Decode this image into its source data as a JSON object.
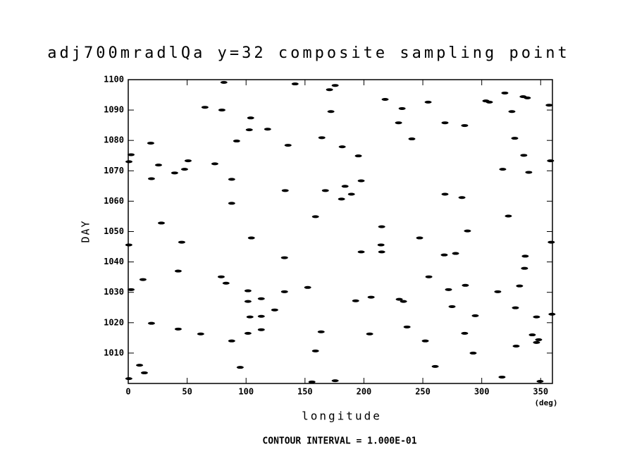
{
  "chart_data": {
    "type": "scatter",
    "title": "adj700mradlQa y=32 composite sampling point",
    "x_label": "longitude",
    "x_unit": "(deg)",
    "y_label": "DAY",
    "footer": "CONTOUR INTERVAL = 1.000E-01",
    "color": "#000000",
    "xlim": [
      0,
      360
    ],
    "ylim": [
      1000,
      1100
    ],
    "xticks": [
      0,
      50,
      100,
      150,
      200,
      250,
      300,
      350
    ],
    "yticks": [
      1010,
      1020,
      1030,
      1040,
      1050,
      1060,
      1070,
      1080,
      1090,
      1100
    ],
    "x": [
      2.4,
      0.6,
      19.1,
      25.7,
      19.7,
      39.4,
      47.8,
      50.8,
      28.1,
      45.4,
      65.1,
      79.5,
      81.2,
      73.5,
      92.0,
      102.7,
      103.9,
      118.3,
      135.6,
      87.8,
      87.8,
      133.2,
      141.6,
      170.8,
      175.6,
      172.0,
      164.3,
      167.3,
      184.0,
      181.0,
      189.4,
      181.6,
      195.3,
      197.7,
      158.9,
      104.5,
      218.0,
      232.4,
      229.4,
      240.7,
      254.5,
      268.8,
      285.5,
      303.5,
      306.5,
      319.6,
      325.6,
      328.0,
      335.7,
      335.1,
      338.7,
      357.2,
      317.8,
      339.9,
      358.4,
      268.8,
      283.2,
      322.6,
      215.1,
      214.5,
      215.1,
      197.7,
      132.6,
      247.3,
      287.9,
      277.8,
      268.2,
      359.0,
      0.5,
      42.4,
      12.5,
      78.9,
      83.0,
      132.6,
      152.3,
      101.6,
      101.6,
      103.3,
      112.9,
      112.9,
      124.3,
      193.0,
      206.1,
      230.0,
      233.6,
      236.6,
      255.1,
      271.8,
      286.1,
      274.8,
      285.5,
      294.5,
      313.6,
      328.6,
      332.1,
      336.3,
      336.9,
      359.6,
      19.7,
      42.4,
      61.5,
      87.8,
      101.6,
      112.9,
      95.0,
      158.9,
      163.7,
      204.9,
      252.1,
      260.5,
      292.7,
      329.2,
      342.9,
      346.5,
      346.5,
      348.3,
      349.5,
      317.2,
      155.9,
      175.6,
      9.6,
      13.7,
      0.5,
      2.4
    ],
    "y": [
      1075.3,
      1073.0,
      1079.1,
      1071.9,
      1067.4,
      1069.3,
      1070.5,
      1073.3,
      1052.8,
      1046.5,
      1090.9,
      1090.0,
      1099.1,
      1072.3,
      1079.8,
      1083.5,
      1087.4,
      1083.7,
      1078.4,
      1067.2,
      1059.3,
      1063.5,
      1098.6,
      1096.7,
      1098.1,
      1089.5,
      1080.9,
      1063.5,
      1064.9,
      1060.7,
      1062.3,
      1077.9,
      1074.9,
      1066.7,
      1054.9,
      1047.9,
      1093.5,
      1090.5,
      1085.8,
      1080.5,
      1092.6,
      1085.8,
      1084.9,
      1093.0,
      1092.6,
      1095.6,
      1089.5,
      1080.7,
      1075.1,
      1094.4,
      1094.0,
      1091.6,
      1070.5,
      1069.5,
      1073.3,
      1062.3,
      1061.2,
      1055.1,
      1051.6,
      1045.6,
      1043.3,
      1043.3,
      1041.4,
      1047.9,
      1050.2,
      1042.8,
      1042.3,
      1046.5,
      1045.6,
      1037.0,
      1034.2,
      1035.1,
      1033.0,
      1030.2,
      1031.6,
      1030.5,
      1027.0,
      1021.9,
      1027.9,
      1022.1,
      1024.2,
      1027.2,
      1028.4,
      1027.7,
      1027.0,
      1018.6,
      1035.1,
      1030.9,
      1032.3,
      1025.3,
      1016.5,
      1022.3,
      1030.2,
      1024.9,
      1032.1,
      1037.9,
      1041.9,
      1022.8,
      1019.8,
      1017.9,
      1016.3,
      1014.0,
      1016.5,
      1017.7,
      1005.3,
      1010.7,
      1017.0,
      1016.3,
      1014.0,
      1005.6,
      1010.0,
      1012.3,
      1016.0,
      1021.9,
      1013.5,
      1014.4,
      1000.7,
      1002.1,
      1000.5,
      1000.9,
      1006.0,
      1003.5,
      1001.6,
      1030.9
    ]
  }
}
